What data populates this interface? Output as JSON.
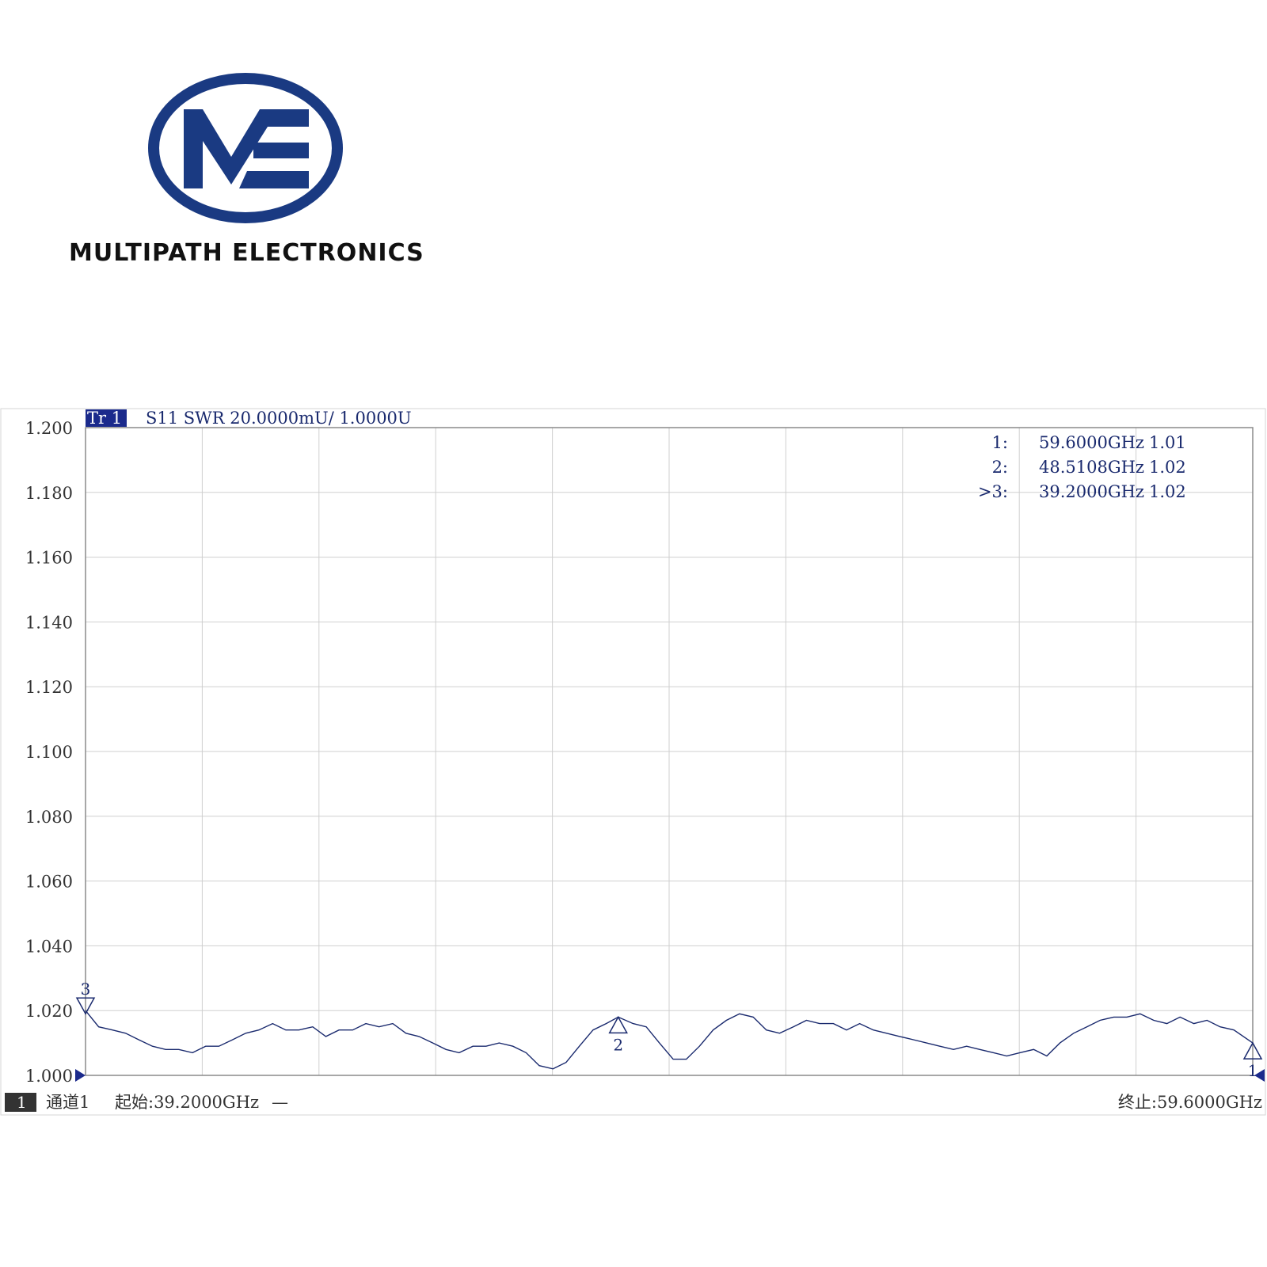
{
  "logo": {
    "company_name": "MULTIPATH ELECTRONICS",
    "mark_letters": "ME",
    "brand_color": "#1a3a82"
  },
  "chart_data": {
    "type": "line",
    "trace_label": "Tr 1",
    "trace_info": "S11  SWR 20.0000mU/ 1.0000U",
    "ylim": [
      1.0,
      1.2
    ],
    "y_ticks": [
      "1.200",
      "1.180",
      "1.160",
      "1.140",
      "1.120",
      "1.100",
      "1.080",
      "1.060",
      "1.040",
      "1.020",
      "1.000"
    ],
    "x_range": [
      39.2,
      59.6
    ],
    "x_unit": "GHz",
    "grid": true,
    "trace_color": "#1a2a6e",
    "x": [
      39.2,
      39.43,
      39.67,
      39.9,
      40.13,
      40.37,
      40.6,
      40.83,
      41.07,
      41.3,
      41.53,
      41.77,
      42.0,
      42.23,
      42.47,
      42.7,
      42.93,
      43.17,
      43.4,
      43.63,
      43.87,
      44.1,
      44.33,
      44.57,
      44.8,
      45.03,
      45.27,
      45.5,
      45.73,
      45.97,
      46.2,
      46.43,
      46.67,
      46.9,
      47.13,
      47.37,
      47.6,
      47.83,
      48.07,
      48.3,
      48.51,
      48.77,
      49.0,
      49.23,
      49.47,
      49.7,
      49.93,
      50.17,
      50.4,
      50.63,
      50.87,
      51.1,
      51.33,
      51.57,
      51.8,
      52.03,
      52.27,
      52.5,
      52.73,
      52.97,
      53.2,
      53.43,
      53.67,
      53.9,
      54.13,
      54.37,
      54.6,
      54.83,
      55.07,
      55.3,
      55.53,
      55.77,
      56.0,
      56.23,
      56.47,
      56.7,
      56.93,
      57.17,
      57.4,
      57.63,
      57.87,
      58.1,
      58.33,
      58.57,
      58.8,
      59.03,
      59.27,
      59.6
    ],
    "values": [
      1.02,
      1.015,
      1.014,
      1.013,
      1.011,
      1.009,
      1.008,
      1.008,
      1.007,
      1.009,
      1.009,
      1.011,
      1.013,
      1.014,
      1.016,
      1.014,
      1.014,
      1.015,
      1.012,
      1.014,
      1.014,
      1.016,
      1.015,
      1.016,
      1.013,
      1.012,
      1.01,
      1.008,
      1.007,
      1.009,
      1.009,
      1.01,
      1.009,
      1.007,
      1.003,
      1.002,
      1.004,
      1.009,
      1.014,
      1.016,
      1.018,
      1.016,
      1.015,
      1.01,
      1.005,
      1.005,
      1.009,
      1.014,
      1.017,
      1.019,
      1.018,
      1.014,
      1.013,
      1.015,
      1.017,
      1.016,
      1.016,
      1.014,
      1.016,
      1.014,
      1.013,
      1.012,
      1.011,
      1.01,
      1.009,
      1.008,
      1.009,
      1.008,
      1.007,
      1.006,
      1.007,
      1.008,
      1.006,
      1.01,
      1.013,
      1.015,
      1.017,
      1.018,
      1.018,
      1.019,
      1.017,
      1.016,
      1.018,
      1.016,
      1.017,
      1.015,
      1.014,
      1.01
    ],
    "markers": [
      {
        "id": "1",
        "label": "1:",
        "freq": "59.6000GHz",
        "value": "1.01",
        "x": 59.6,
        "y": 1.01,
        "direction": "up"
      },
      {
        "id": "2",
        "label": "2:",
        "freq": "48.5108GHz",
        "value": "1.02",
        "x": 48.51,
        "y": 1.018,
        "direction": "up"
      },
      {
        "id": "3",
        "label": ">3:",
        "freq": "39.2000GHz",
        "value": "1.02",
        "x": 39.2,
        "y": 1.02,
        "direction": "down"
      }
    ]
  },
  "status_bar": {
    "channel_number": "1",
    "channel_label": "通道1",
    "start_label": "起始:39.2000GHz",
    "dash": "—",
    "stop_label": "终止:59.6000GHz"
  }
}
